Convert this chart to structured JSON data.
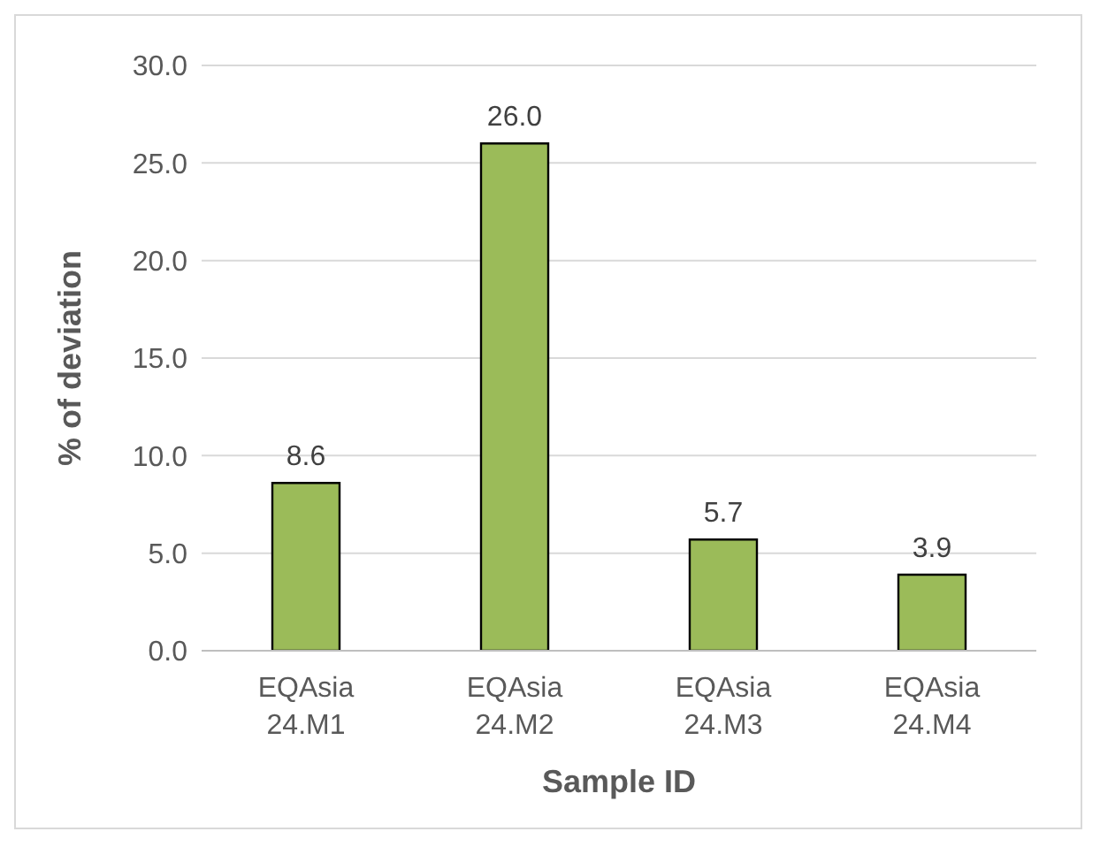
{
  "chart_data": {
    "type": "bar",
    "xlabel": "Sample ID",
    "ylabel": "% of deviation",
    "categories": [
      "EQAsia 24.M1",
      "EQAsia 24.M2",
      "EQAsia 24.M3",
      "EQAsia 24.M4"
    ],
    "values": [
      8.6,
      26.0,
      5.7,
      3.9
    ],
    "value_labels": [
      "8.6",
      "26.0",
      "5.7",
      "3.9"
    ],
    "color": "#9bbb59",
    "ylim": [
      0,
      30
    ],
    "yticks": [
      {
        "value": 0,
        "label": "0.0"
      },
      {
        "value": 5,
        "label": "5.0"
      },
      {
        "value": 10,
        "label": "10.0"
      },
      {
        "value": 15,
        "label": "15.0"
      },
      {
        "value": 20,
        "label": "20.0"
      },
      {
        "value": 25,
        "label": "25.0"
      },
      {
        "value": 30,
        "label": "30.0"
      }
    ],
    "grid": "y",
    "legend": false
  }
}
